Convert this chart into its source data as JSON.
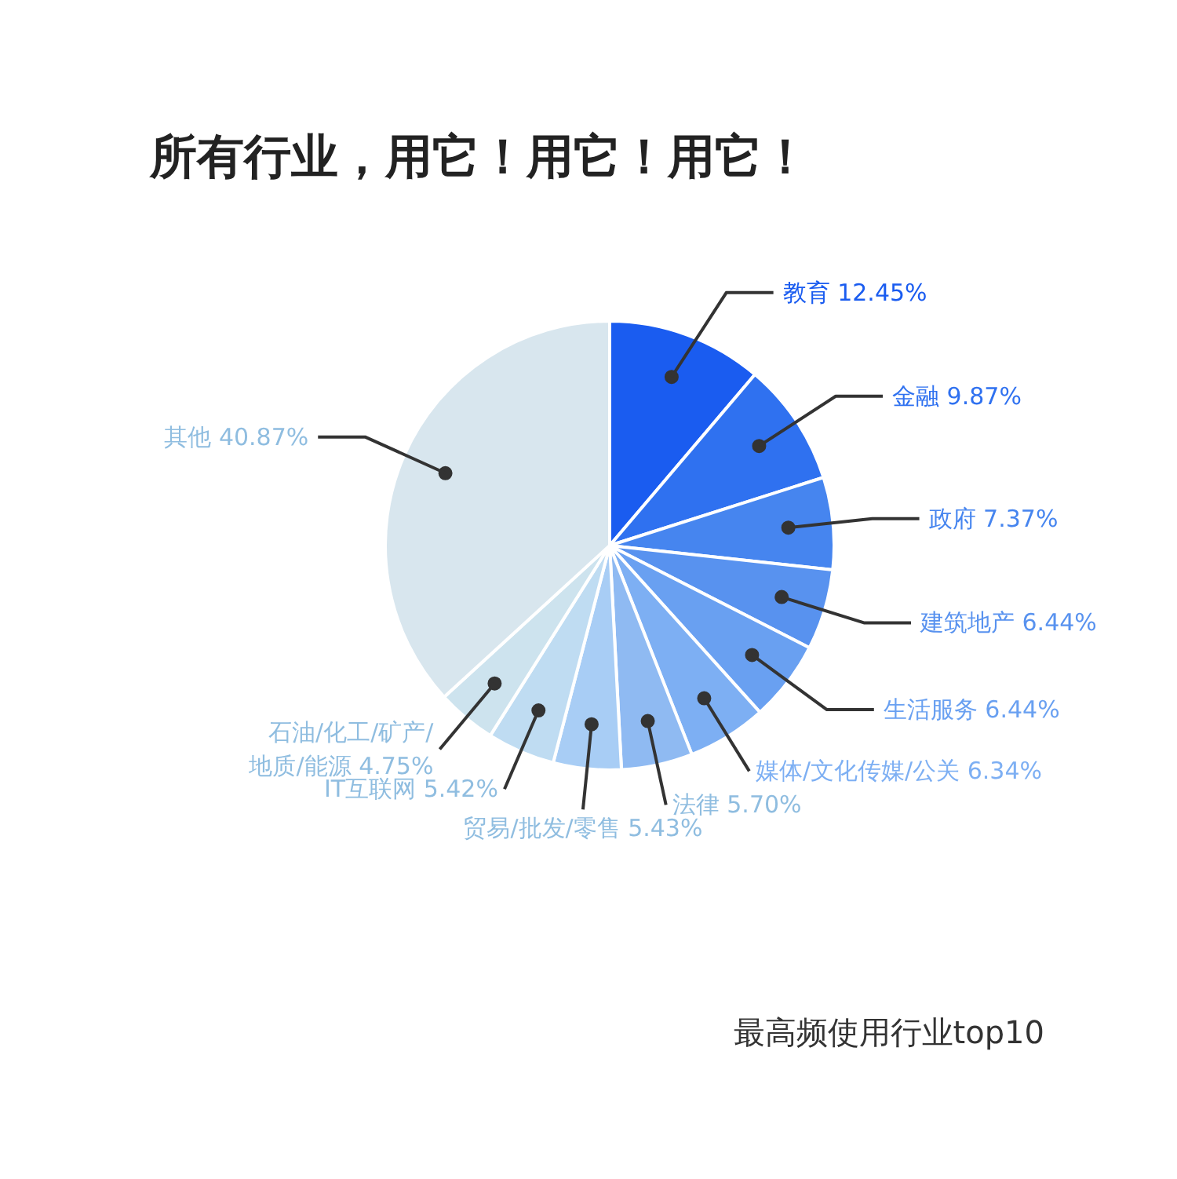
{
  "chart_data": {
    "type": "pie",
    "title": "所有行业，用它！用它！用它！",
    "categories": [
      "教育",
      "金融",
      "政府",
      "建筑地产",
      "生活服务",
      "媒体/文化传媒/公关",
      "法律",
      "贸易/批发/零售",
      "IT互联网",
      "石油/化工/矿产/\n地质/能源",
      "其他"
    ],
    "values": [
      12.45,
      9.87,
      7.37,
      6.44,
      6.44,
      6.34,
      5.7,
      5.43,
      5.42,
      4.75,
      40.87
    ],
    "value_labels": [
      "12.45%",
      "9.87%",
      "7.37%",
      "6.44%",
      "6.44%",
      "6.34%",
      "5.70%",
      "5.43%",
      "5.42%",
      "4.75%",
      "40.87%"
    ],
    "colors": [
      "#1a5cf0",
      "#2f71f0",
      "#4685ef",
      "#5892ef",
      "#69a0f1",
      "#7daff3",
      "#8fbaf2",
      "#a8cdf5",
      "#bfdcf2",
      "#cde3ee",
      "#d8e6ee"
    ],
    "annotations": [
      "最高频使用行业top10"
    ]
  }
}
